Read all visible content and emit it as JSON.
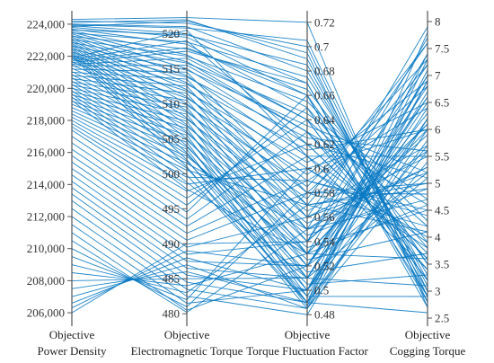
{
  "chart_data": {
    "type": "parallel-coordinates",
    "line_color": "#0a7ac4",
    "axes": [
      {
        "key": "power_density",
        "title_top": "Objective",
        "title_bottom": "Power Density",
        "range": [
          205500,
          224500
        ],
        "ticks": [
          {
            "value": 206000,
            "label": "206,000"
          },
          {
            "value": 208000,
            "label": "208,000"
          },
          {
            "value": 210000,
            "label": "210,000"
          },
          {
            "value": 212000,
            "label": "212,000"
          },
          {
            "value": 214000,
            "label": "214,000"
          },
          {
            "value": 216000,
            "label": "216,000"
          },
          {
            "value": 218000,
            "label": "218,000"
          },
          {
            "value": 220000,
            "label": "220,000"
          },
          {
            "value": 222000,
            "label": "222,000"
          },
          {
            "value": 224000,
            "label": "224,000"
          }
        ],
        "tick_side": "left"
      },
      {
        "key": "electromagnetic_torque",
        "title_top": "Objective",
        "title_bottom": "Electromagnetic Torque",
        "range": [
          479,
          522.5
        ],
        "ticks": [
          {
            "value": 480,
            "label": "480"
          },
          {
            "value": 485,
            "label": "485"
          },
          {
            "value": 490,
            "label": "490"
          },
          {
            "value": 495,
            "label": "495"
          },
          {
            "value": 500,
            "label": "500"
          },
          {
            "value": 505,
            "label": "505"
          },
          {
            "value": 510,
            "label": "510"
          },
          {
            "value": 515,
            "label": "515"
          },
          {
            "value": 520,
            "label": "520"
          }
        ],
        "tick_side": "left"
      },
      {
        "key": "torque_fluctuation_factor",
        "title_top": "Objective",
        "title_bottom": "Torque Fluctuation Factor",
        "range": [
          0.475,
          0.725
        ],
        "ticks": [
          {
            "value": 0.48,
            "label": "0.48"
          },
          {
            "value": 0.5,
            "label": "0.5"
          },
          {
            "value": 0.52,
            "label": "0.52"
          },
          {
            "value": 0.54,
            "label": "0.54"
          },
          {
            "value": 0.56,
            "label": "0.56"
          },
          {
            "value": 0.58,
            "label": "0.58"
          },
          {
            "value": 0.6,
            "label": "0.6"
          },
          {
            "value": 0.62,
            "label": "0.62"
          },
          {
            "value": 0.64,
            "label": "0.64"
          },
          {
            "value": 0.66,
            "label": "0.66"
          },
          {
            "value": 0.68,
            "label": "0.68"
          },
          {
            "value": 0.7,
            "label": "0.7"
          },
          {
            "value": 0.72,
            "label": "0.72"
          }
        ],
        "tick_side": "right"
      },
      {
        "key": "cogging_torque",
        "title_top": "Objective",
        "title_bottom": "Cogging Torque",
        "range": [
          2.45,
          8.1
        ],
        "ticks": [
          {
            "value": 2.5,
            "label": "2.5"
          },
          {
            "value": 3,
            "label": "3"
          },
          {
            "value": 3.5,
            "label": "3.5"
          },
          {
            "value": 4,
            "label": "4"
          },
          {
            "value": 4.5,
            "label": "4.5"
          },
          {
            "value": 5,
            "label": "5"
          },
          {
            "value": 5.5,
            "label": "5.5"
          },
          {
            "value": 6,
            "label": "6"
          },
          {
            "value": 6.5,
            "label": "6.5"
          },
          {
            "value": 7,
            "label": "7"
          },
          {
            "value": 7.5,
            "label": "7.5"
          },
          {
            "value": 8,
            "label": "8"
          }
        ],
        "tick_side": "right"
      }
    ],
    "lines": [
      [
        224300,
        522.3,
        0.72,
        2.7
      ],
      [
        224200,
        521.5,
        0.7,
        2.9
      ],
      [
        224100,
        522.0,
        0.69,
        3.1
      ],
      [
        224000,
        521.0,
        0.68,
        3.3
      ],
      [
        223900,
        520.0,
        0.67,
        3.0
      ],
      [
        223800,
        519.5,
        0.66,
        3.5
      ],
      [
        223700,
        518.5,
        0.65,
        3.8
      ],
      [
        223600,
        517.0,
        0.64,
        4.2
      ],
      [
        223500,
        516.0,
        0.63,
        4.6
      ],
      [
        223400,
        515.0,
        0.62,
        5.1
      ],
      [
        223300,
        514.0,
        0.61,
        5.5
      ],
      [
        223200,
        513.0,
        0.6,
        6.0
      ],
      [
        223100,
        512.0,
        0.59,
        6.4
      ],
      [
        223000,
        511.0,
        0.58,
        6.8
      ],
      [
        222900,
        510.0,
        0.57,
        7.2
      ],
      [
        222800,
        509.0,
        0.56,
        7.6
      ],
      [
        222700,
        508.0,
        0.55,
        7.9
      ],
      [
        222600,
        507.0,
        0.54,
        7.7
      ],
      [
        222500,
        506.0,
        0.53,
        7.4
      ],
      [
        222400,
        505.0,
        0.52,
        7.0
      ],
      [
        222300,
        504.0,
        0.51,
        6.6
      ],
      [
        222200,
        503.0,
        0.5,
        6.2
      ],
      [
        222100,
        502.0,
        0.49,
        5.8
      ],
      [
        222000,
        501.0,
        0.485,
        5.4
      ],
      [
        221900,
        520.5,
        0.61,
        3.4
      ],
      [
        221800,
        519.0,
        0.62,
        3.6
      ],
      [
        221700,
        518.0,
        0.66,
        2.8
      ],
      [
        221600,
        517.5,
        0.67,
        2.9
      ],
      [
        221500,
        516.5,
        0.64,
        3.2
      ],
      [
        221400,
        515.5,
        0.63,
        3.7
      ],
      [
        221200,
        514.5,
        0.58,
        4.8
      ],
      [
        221000,
        513.5,
        0.57,
        5.0
      ],
      [
        220800,
        512.5,
        0.56,
        5.2
      ],
      [
        220600,
        511.5,
        0.55,
        5.6
      ],
      [
        220400,
        510.5,
        0.54,
        5.9
      ],
      [
        220200,
        509.5,
        0.53,
        6.1
      ],
      [
        220000,
        508.5,
        0.52,
        6.3
      ],
      [
        219800,
        507.5,
        0.51,
        6.5
      ],
      [
        219600,
        506.5,
        0.5,
        6.7
      ],
      [
        219400,
        505.5,
        0.495,
        6.9
      ],
      [
        219200,
        504.5,
        0.49,
        7.1
      ],
      [
        219000,
        503.5,
        0.487,
        7.3
      ],
      [
        218800,
        502.5,
        0.53,
        6.0
      ],
      [
        218600,
        501.5,
        0.55,
        5.3
      ],
      [
        218400,
        500.5,
        0.57,
        4.9
      ],
      [
        218200,
        499.5,
        0.59,
        4.4
      ],
      [
        218000,
        498.5,
        0.6,
        4.0
      ],
      [
        217800,
        497.5,
        0.62,
        3.6
      ],
      [
        217600,
        496.5,
        0.64,
        3.2
      ],
      [
        217400,
        495.5,
        0.65,
        2.9
      ],
      [
        217000,
        494.5,
        0.66,
        2.7
      ],
      [
        216600,
        493.5,
        0.63,
        3.4
      ],
      [
        216200,
        492.5,
        0.61,
        3.9
      ],
      [
        215800,
        491.5,
        0.59,
        4.5
      ],
      [
        215400,
        490.5,
        0.58,
        5.0
      ],
      [
        215000,
        489.5,
        0.56,
        5.5
      ],
      [
        214600,
        488.5,
        0.54,
        6.1
      ],
      [
        214200,
        487.5,
        0.52,
        6.6
      ],
      [
        213800,
        486.5,
        0.51,
        7.0
      ],
      [
        213400,
        485.5,
        0.5,
        7.4
      ],
      [
        213000,
        484.5,
        0.49,
        7.8
      ],
      [
        212500,
        483.5,
        0.485,
        6.9
      ],
      [
        212000,
        482.5,
        0.48,
        6.2
      ],
      [
        211500,
        481.5,
        0.5,
        5.7
      ],
      [
        211000,
        480.5,
        0.52,
        5.2
      ],
      [
        210500,
        480.2,
        0.55,
        4.7
      ],
      [
        210000,
        481.0,
        0.58,
        4.2
      ],
      [
        209500,
        482.0,
        0.6,
        3.8
      ],
      [
        209000,
        483.0,
        0.57,
        4.1
      ],
      [
        208500,
        484.0,
        0.53,
        4.6
      ],
      [
        208000,
        485.0,
        0.51,
        5.1
      ],
      [
        207500,
        486.0,
        0.49,
        5.6
      ],
      [
        207000,
        487.0,
        0.485,
        6.0
      ],
      [
        206600,
        488.0,
        0.5,
        6.4
      ],
      [
        206300,
        489.0,
        0.52,
        6.8
      ],
      [
        206000,
        490.0,
        0.54,
        7.2
      ],
      [
        223950,
        520.8,
        0.705,
        3.0
      ],
      [
        223850,
        521.8,
        0.695,
        2.8
      ],
      [
        223650,
        519.8,
        0.685,
        3.2
      ],
      [
        223450,
        518.8,
        0.675,
        3.5
      ],
      [
        223250,
        517.8,
        0.665,
        3.9
      ],
      [
        223050,
        516.8,
        0.655,
        4.3
      ],
      [
        222850,
        515.8,
        0.645,
        4.7
      ],
      [
        222650,
        514.8,
        0.635,
        5.2
      ],
      [
        222450,
        513.8,
        0.625,
        5.6
      ],
      [
        222250,
        512.8,
        0.615,
        6.0
      ],
      [
        222050,
        511.8,
        0.605,
        6.5
      ],
      [
        221850,
        510.8,
        0.595,
        6.9
      ],
      [
        221650,
        509.8,
        0.585,
        7.3
      ],
      [
        221450,
        508.8,
        0.575,
        7.6
      ],
      [
        221250,
        507.8,
        0.565,
        5.7
      ],
      [
        221050,
        506.8,
        0.555,
        5.3
      ],
      [
        220850,
        505.8,
        0.545,
        4.9
      ],
      [
        220650,
        504.8,
        0.535,
        4.5
      ],
      [
        220450,
        503.8,
        0.525,
        4.1
      ],
      [
        220250,
        502.8,
        0.515,
        3.7
      ],
      [
        220050,
        501.8,
        0.505,
        3.3
      ],
      [
        219850,
        500.8,
        0.495,
        2.9
      ],
      [
        219650,
        499.8,
        0.49,
        2.6
      ],
      [
        219450,
        498.8,
        0.51,
        3.1
      ],
      [
        219250,
        497.8,
        0.53,
        3.6
      ]
    ]
  }
}
